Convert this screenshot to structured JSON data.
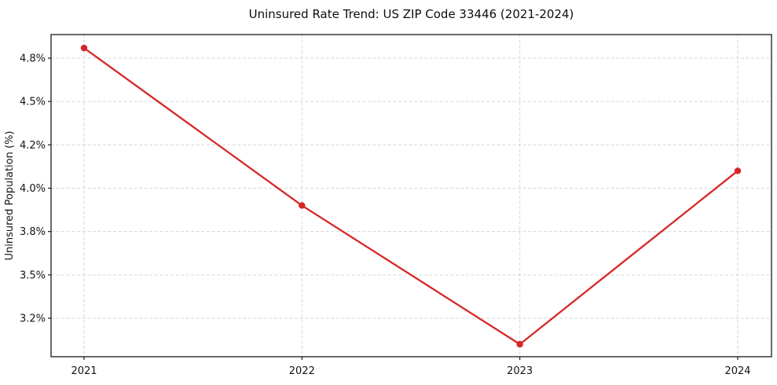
{
  "chart_data": {
    "type": "line",
    "title": "Uninsured Rate Trend: US ZIP Code 33446 (2021-2024)",
    "xlabel": "",
    "ylabel": "Uninsured Population (%)",
    "x_categories": [
      "2021",
      "2022",
      "2023",
      "2024"
    ],
    "values": [
      4.87,
      3.92,
      3.02,
      4.08
    ],
    "ytick_labels": [
      "4.8%",
      "4.5%",
      "4.2%",
      "4.0%",
      "3.8%",
      "3.5%",
      "3.2%"
    ],
    "ytick_values": [
      4.8,
      4.5,
      4.2,
      4.0,
      3.8,
      3.5,
      3.2
    ],
    "grid": true,
    "grid_style": "dashed",
    "legend": false,
    "line_color": "#d62728",
    "marker": "circle",
    "grid_color": "#c9c9c9",
    "spine_color": "#1a1a1a",
    "text_color": "#141414",
    "background_color": "#ffffff"
  }
}
